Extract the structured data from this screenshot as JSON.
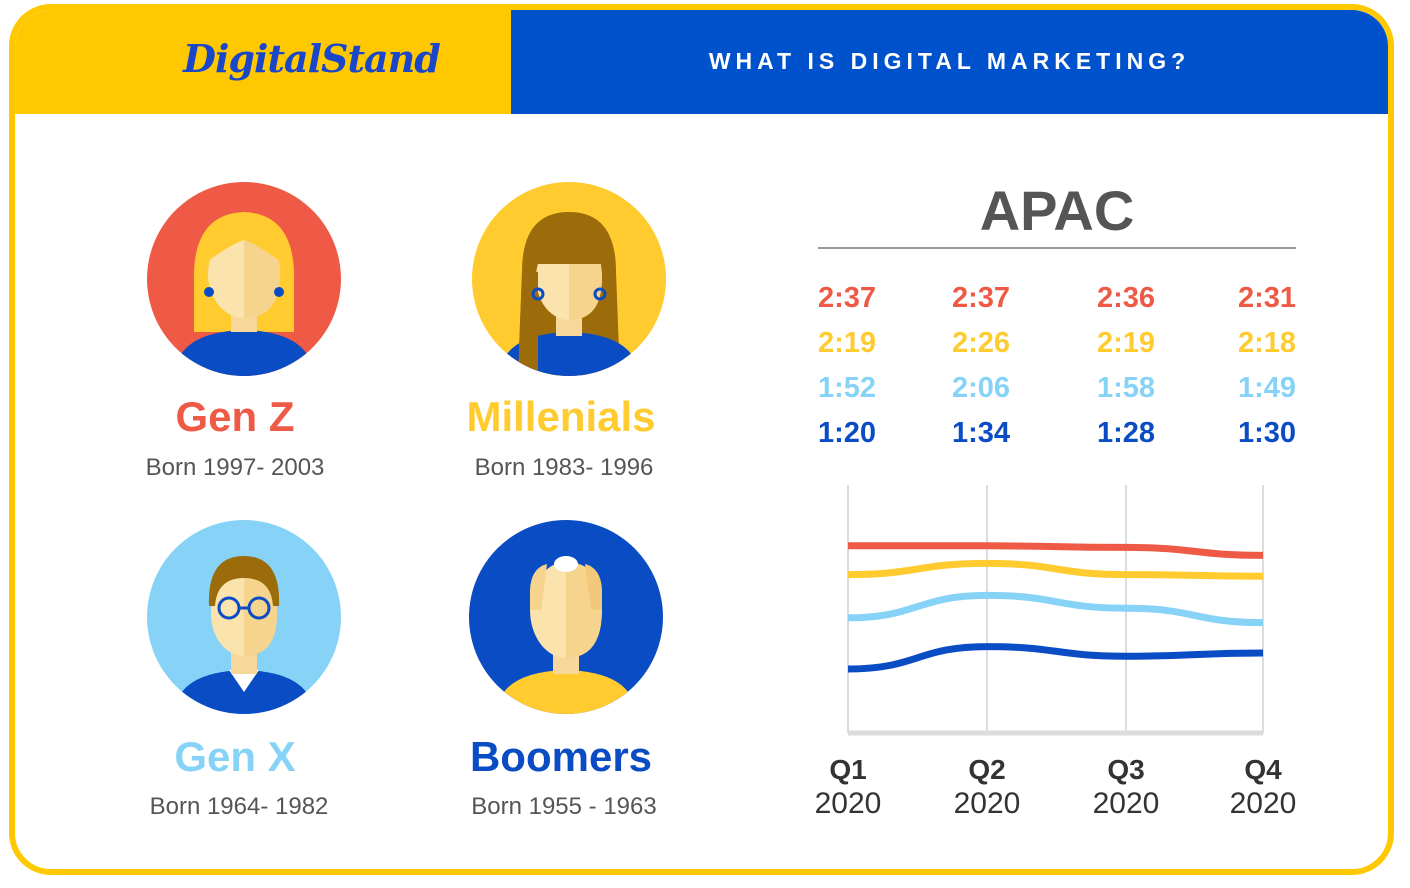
{
  "header": {
    "logo_text": "DigitalStand",
    "headline": "WHAT IS DIGITAL MARKETING?"
  },
  "colors": {
    "yellow": "#FFC800",
    "blue": "#0052CC",
    "gen_z": "#EE5A45",
    "millenials": "#FFCB2F",
    "gen_x": "#87D3F7",
    "boomers": "#0A4CC4"
  },
  "generations": [
    {
      "name": "Gen Z",
      "born": "Born 1997- 2003"
    },
    {
      "name": "Millenials",
      "born": "Born 1983- 1996"
    },
    {
      "name": "Gen X",
      "born": "Born 1964- 1982"
    },
    {
      "name": "Boomers",
      "born": "Born 1955 - 1963"
    }
  ],
  "chart_data": {
    "type": "line",
    "title": "APAC",
    "categories": [
      "Q1\n2020",
      "Q2\n2020",
      "Q3\n2020",
      "Q4\n2020"
    ],
    "category_labels": [
      {
        "quarter": "Q1",
        "year": "2020"
      },
      {
        "quarter": "Q2",
        "year": "2020"
      },
      {
        "quarter": "Q3",
        "year": "2020"
      },
      {
        "quarter": "Q4",
        "year": "2020"
      }
    ],
    "series": [
      {
        "name": "Gen Z",
        "color": "#EE5A45",
        "values": [
          157,
          157,
          156,
          151
        ],
        "labels": [
          "2:37",
          "2:37",
          "2:36",
          "2:31"
        ]
      },
      {
        "name": "Millenials",
        "color": "#FFCB2F",
        "values": [
          139,
          146,
          139,
          138
        ],
        "labels": [
          "2:19",
          "2:26",
          "2:19",
          "2:18"
        ]
      },
      {
        "name": "Gen X",
        "color": "#87D3F7",
        "values": [
          112,
          126,
          118,
          109
        ],
        "labels": [
          "1:52",
          "2:06",
          "1:58",
          "1:49"
        ]
      },
      {
        "name": "Boomers",
        "color": "#0A4CC4",
        "values": [
          80,
          94,
          88,
          90
        ],
        "labels": [
          "1:20",
          "1:34",
          "1:28",
          "1:30"
        ]
      }
    ],
    "grid": true,
    "legend": "none"
  }
}
